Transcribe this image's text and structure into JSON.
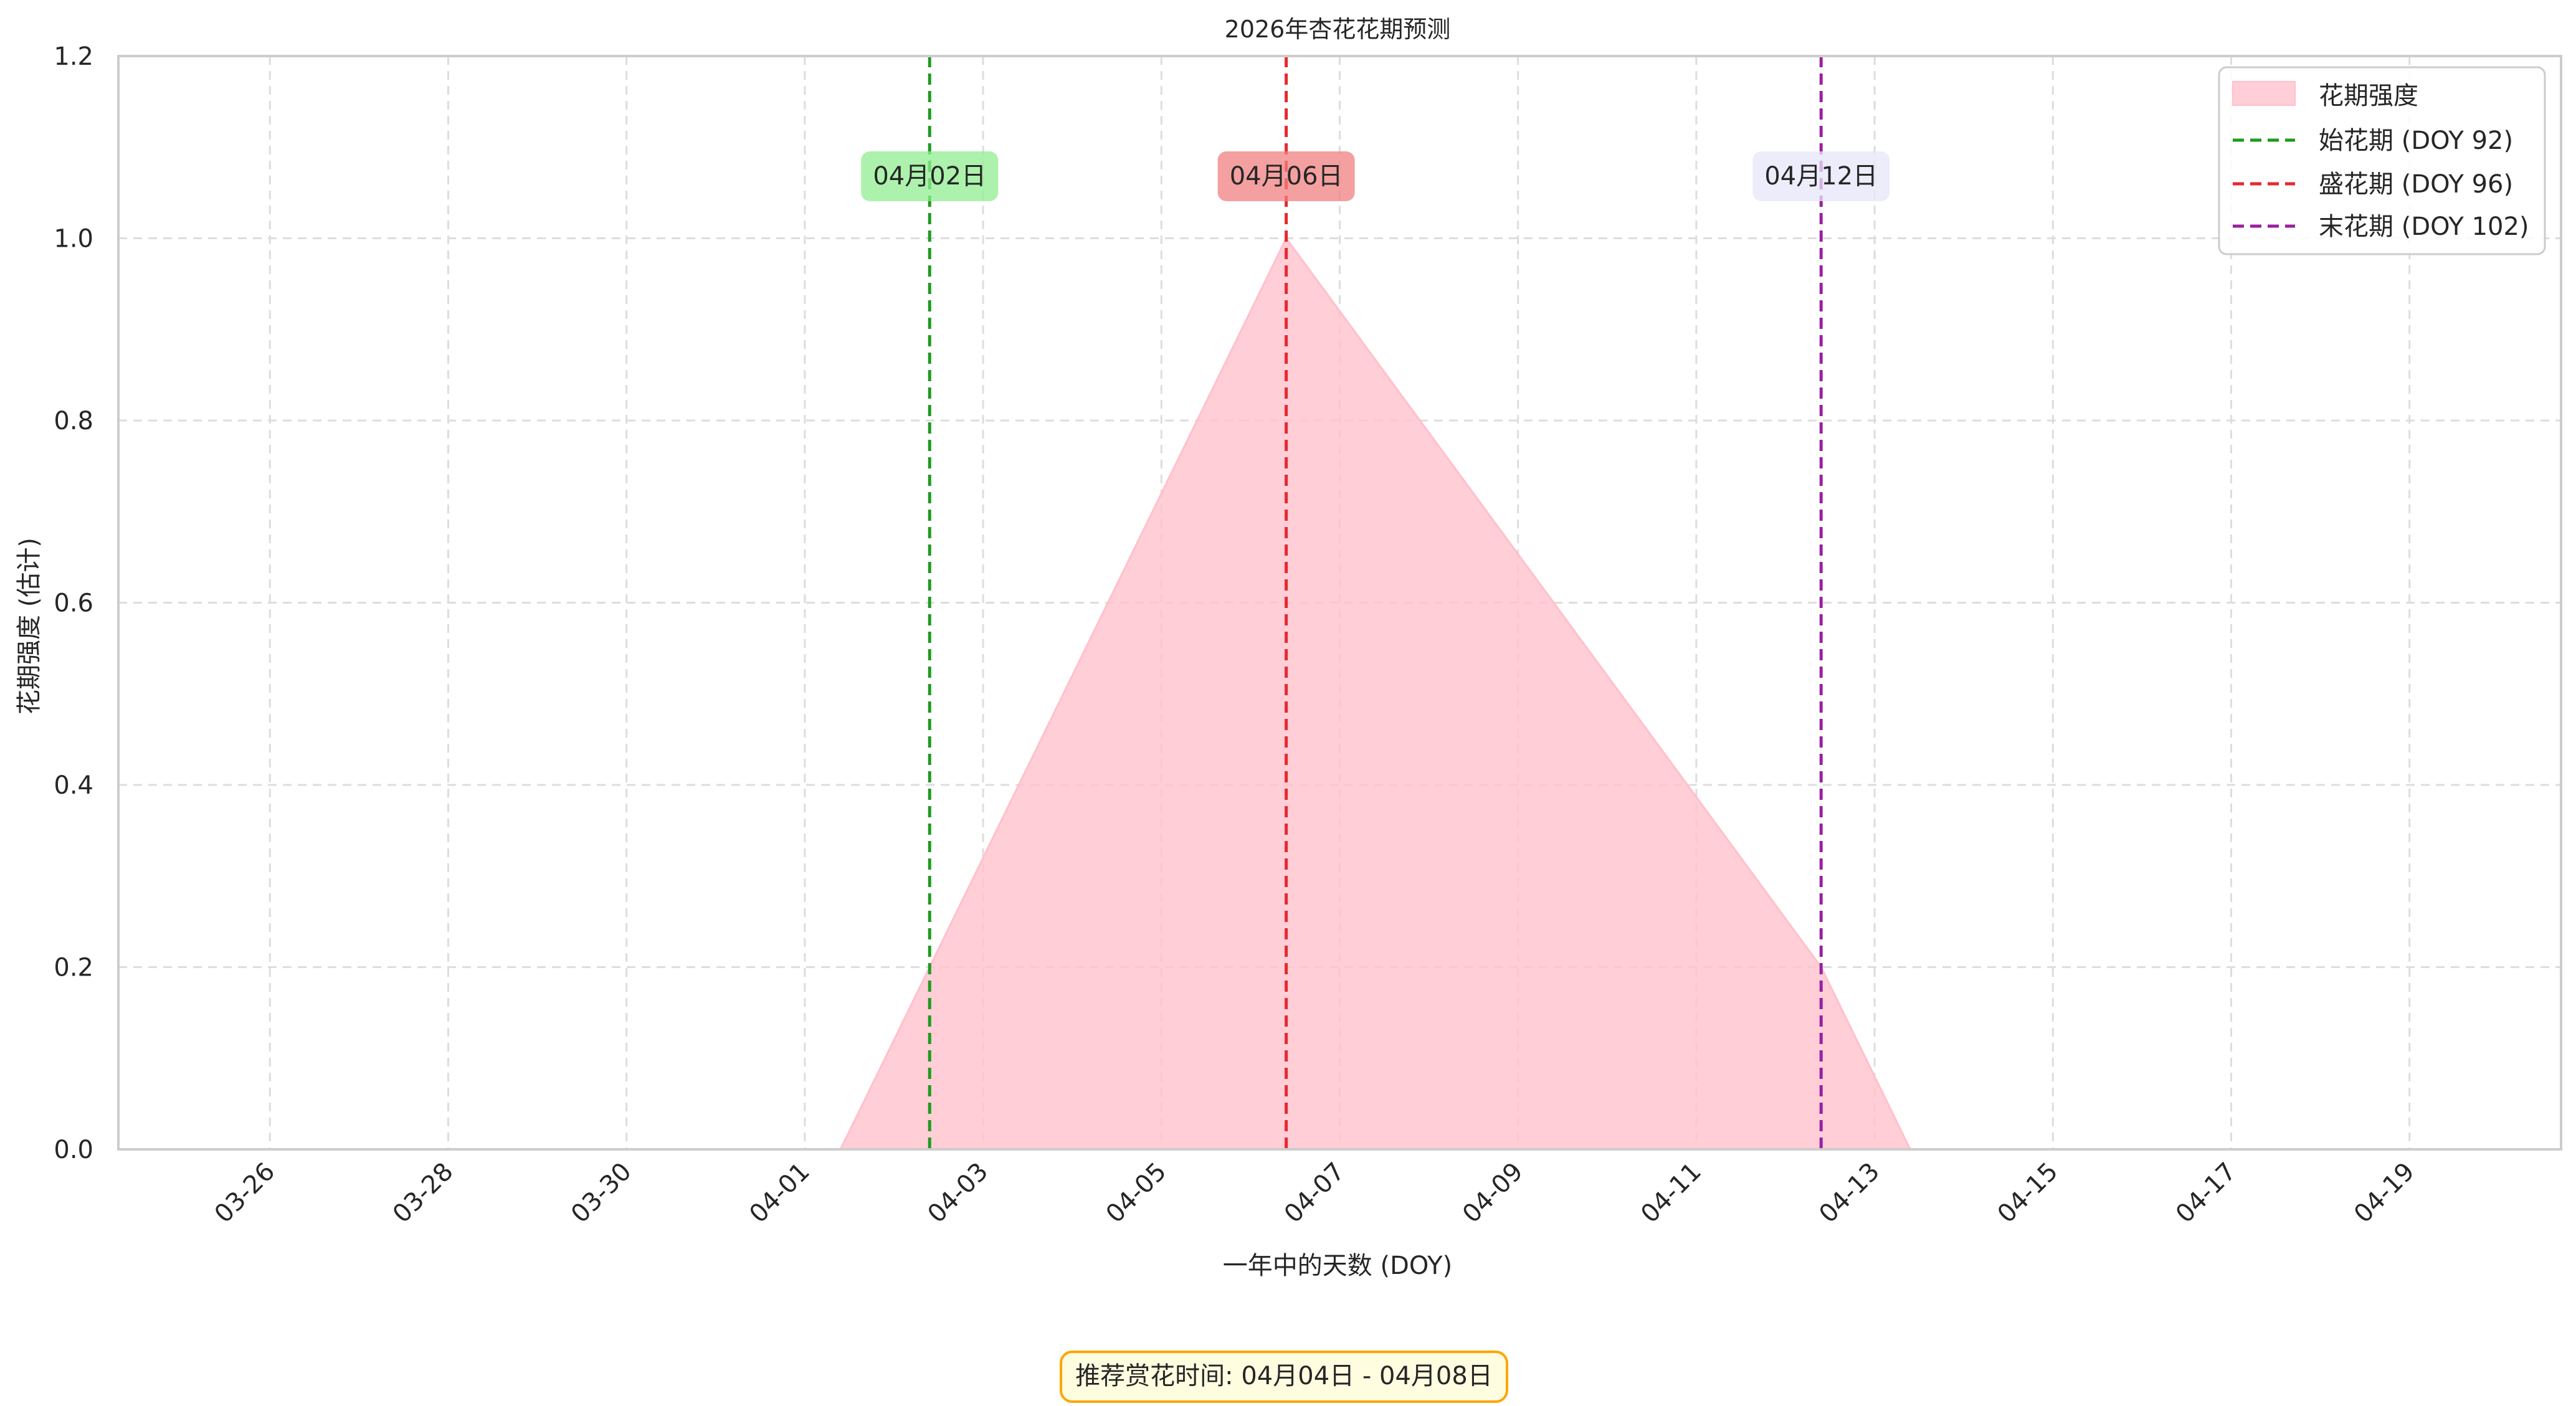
{
  "chart_data": {
    "type": "area",
    "title": "2026年杏花花期预测",
    "xlabel": "一年中的天数 (DOY)",
    "ylabel": "花期强度 (估计)",
    "xlim_doy": [
      83.3,
      110.7
    ],
    "ylim": [
      0,
      1.2
    ],
    "grid": true,
    "grid_style": "dashed",
    "legend_position": "top-right",
    "x_tick_labels": [
      {
        "doy": 85,
        "label": "03-26"
      },
      {
        "doy": 87,
        "label": "03-28"
      },
      {
        "doy": 89,
        "label": "03-30"
      },
      {
        "doy": 91,
        "label": "04-01"
      },
      {
        "doy": 93,
        "label": "04-03"
      },
      {
        "doy": 95,
        "label": "04-05"
      },
      {
        "doy": 97,
        "label": "04-07"
      },
      {
        "doy": 99,
        "label": "04-09"
      },
      {
        "doy": 101,
        "label": "04-11"
      },
      {
        "doy": 103,
        "label": "04-13"
      },
      {
        "doy": 105,
        "label": "04-15"
      },
      {
        "doy": 107,
        "label": "04-17"
      },
      {
        "doy": 109,
        "label": "04-19"
      }
    ],
    "y_ticks": [
      {
        "value": 0,
        "label": "0.0"
      },
      {
        "value": 0.2,
        "label": "0.2"
      },
      {
        "value": 0.4,
        "label": "0.4"
      },
      {
        "value": 0.6,
        "label": "0.6"
      },
      {
        "value": 0.8,
        "label": "0.8"
      },
      {
        "value": 1.0,
        "label": "1.0"
      },
      {
        "value": 1.2,
        "label": "1.2"
      }
    ],
    "series": [
      {
        "name": "花期强度",
        "color": "#ffc0cb",
        "x": [
          91.4,
          92.4,
          96.4,
          102.4,
          103.4
        ],
        "y": [
          0.0,
          0.2,
          1.0,
          0.2,
          0.0
        ]
      }
    ],
    "vlines": [
      {
        "name": "始花期 (DOY 92)",
        "x": 92.4,
        "color": "#1f9a1f",
        "label": "04月02日",
        "label_bg": "#90ee90"
      },
      {
        "name": "盛花期 (DOY 96)",
        "x": 96.4,
        "color": "#e8282e",
        "label": "04月06日",
        "label_bg": "#f08080"
      },
      {
        "name": "末花期 (DOY 102)",
        "x": 102.4,
        "color": "#9b1fa0",
        "label": "04月12日",
        "label_bg": "#e6e6fa"
      }
    ],
    "annotation": {
      "text": "推荐赏花时间: 04月04日 - 04月08日",
      "bg": "#fffde0",
      "border": "#ffa500"
    }
  }
}
